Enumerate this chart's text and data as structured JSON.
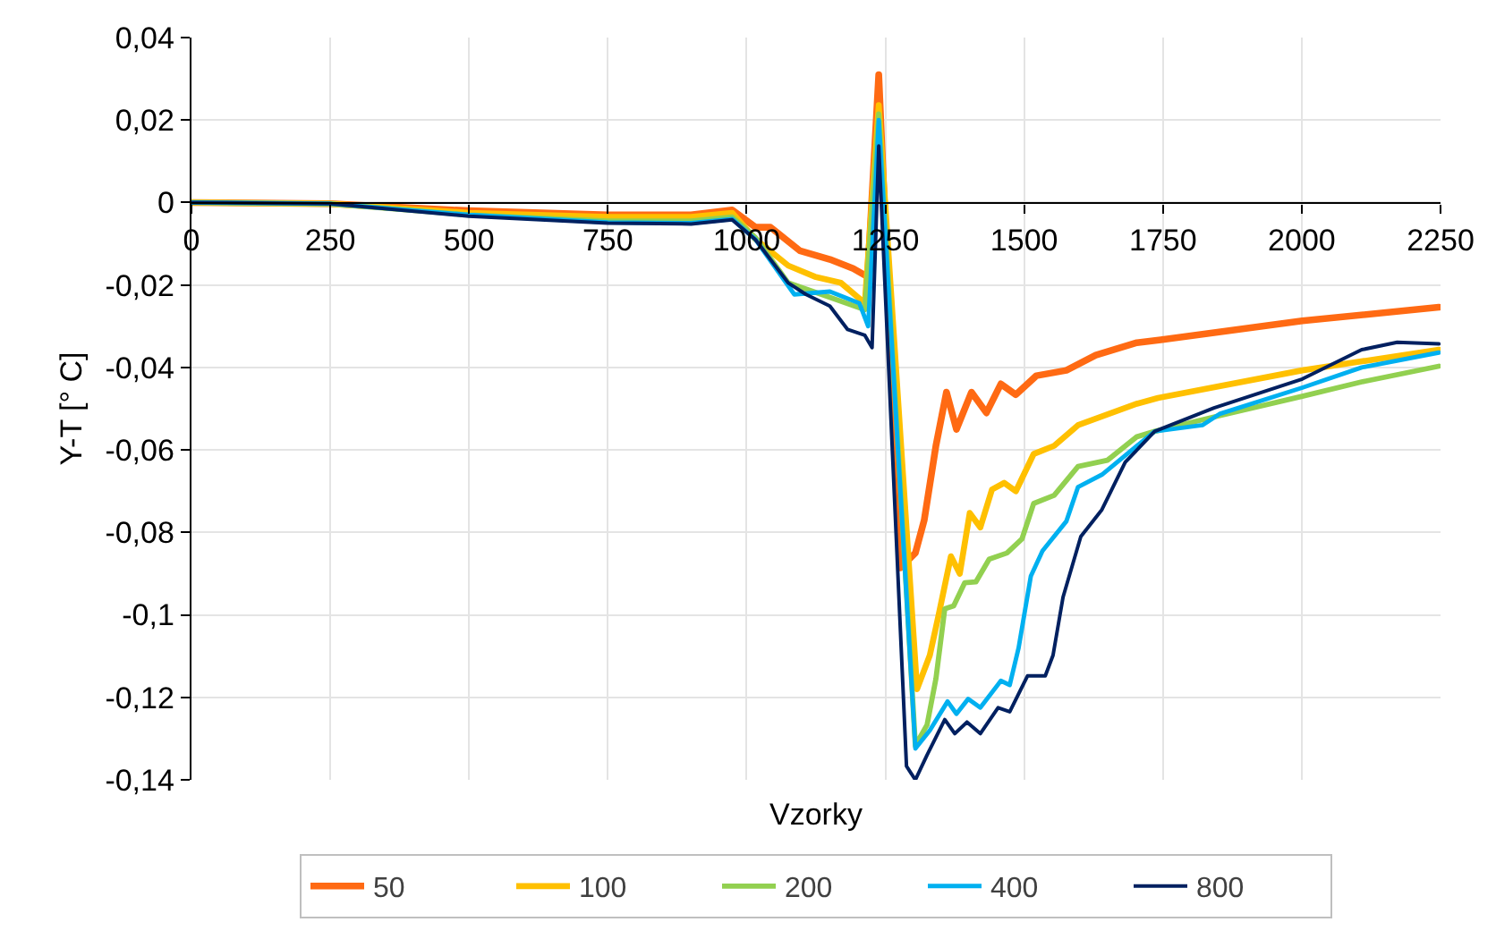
{
  "chart_data": {
    "type": "line",
    "xlabel": "Vzorky",
    "ylabel": "Y-T [° C]",
    "xlim": [
      0,
      2250
    ],
    "xticks": [
      0,
      250,
      500,
      750,
      1000,
      1250,
      1500,
      1750,
      2000,
      2250
    ],
    "ylim": [
      -0.14,
      0.04
    ],
    "yticks": [
      {
        "value": -0.14,
        "label": "-0,14"
      },
      {
        "value": -0.12,
        "label": "-0,12"
      },
      {
        "value": -0.1,
        "label": "-0,1"
      },
      {
        "value": -0.08,
        "label": "-0,08"
      },
      {
        "value": -0.06,
        "label": "-0,06"
      },
      {
        "value": -0.04,
        "label": "-0,04"
      },
      {
        "value": -0.02,
        "label": "-0,02"
      },
      {
        "value": 0,
        "label": "0"
      },
      {
        "value": 0.02,
        "label": "0,02"
      },
      {
        "value": 0.04,
        "label": "0,04"
      }
    ],
    "grid": true,
    "legend": "bottom",
    "marker": "none",
    "line_style": "solid",
    "series": [
      {
        "name": "50",
        "color": "#ff6a13",
        "x": [
          0,
          250,
          500,
          750,
          900,
          974,
          1016,
          1043,
          1096,
          1150,
          1192,
          1218,
          1238,
          1277,
          1304,
          1320,
          1341,
          1360,
          1378,
          1405,
          1432,
          1458,
          1485,
          1522,
          1576,
          1629,
          1703,
          1746,
          2001,
          2247
        ],
        "values": [
          0,
          -0.0003,
          -0.002,
          -0.003,
          -0.003,
          -0.0018,
          -0.006,
          -0.006,
          -0.0117,
          -0.0138,
          -0.016,
          -0.018,
          0.031,
          -0.0886,
          -0.085,
          -0.077,
          -0.059,
          -0.046,
          -0.055,
          -0.046,
          -0.051,
          -0.044,
          -0.0466,
          -0.042,
          -0.0407,
          -0.037,
          -0.034,
          -0.0333,
          -0.0287,
          -0.0254
        ]
      },
      {
        "name": "100",
        "color": "#ffc000",
        "x": [
          0,
          250,
          500,
          750,
          900,
          974,
          1016,
          1075,
          1123,
          1170,
          1213,
          1238,
          1307,
          1330,
          1346,
          1368,
          1384,
          1402,
          1421,
          1442,
          1464,
          1485,
          1517,
          1554,
          1597,
          1703,
          1741,
          2001,
          2247
        ],
        "values": [
          0,
          -0.0003,
          -0.0025,
          -0.0035,
          -0.0035,
          -0.0025,
          -0.0089,
          -0.0153,
          -0.018,
          -0.0195,
          -0.0244,
          0.0236,
          -0.118,
          -0.1098,
          -0.1,
          -0.0858,
          -0.09,
          -0.0753,
          -0.0788,
          -0.0696,
          -0.068,
          -0.07,
          -0.061,
          -0.059,
          -0.054,
          -0.0488,
          -0.0474,
          -0.0407,
          -0.0357
        ]
      },
      {
        "name": "200",
        "color": "#92d050",
        "x": [
          0,
          250,
          500,
          750,
          900,
          974,
          1016,
          1075,
          1150,
          1213,
          1238,
          1304,
          1325,
          1341,
          1357,
          1373,
          1393,
          1413,
          1437,
          1469,
          1496,
          1517,
          1554,
          1597,
          1650,
          1703,
          1735,
          1842,
          2001,
          2108,
          2247
        ],
        "values": [
          0,
          -0.0003,
          -0.003,
          -0.0045,
          -0.0045,
          -0.0035,
          -0.0085,
          -0.0195,
          -0.023,
          -0.026,
          0.0215,
          -0.1317,
          -0.1267,
          -0.1155,
          -0.0985,
          -0.0978,
          -0.0922,
          -0.092,
          -0.0865,
          -0.085,
          -0.0816,
          -0.073,
          -0.071,
          -0.064,
          -0.0625,
          -0.0568,
          -0.0555,
          -0.052,
          -0.047,
          -0.0435,
          -0.0397
        ]
      },
      {
        "name": "400",
        "color": "#00b0f0",
        "x": [
          0,
          250,
          500,
          750,
          900,
          974,
          1016,
          1086,
          1150,
          1203,
          1219,
          1238,
          1304,
          1330,
          1362,
          1378,
          1399,
          1421,
          1458,
          1474,
          1490,
          1512,
          1533,
          1576,
          1597,
          1640,
          1735,
          1821,
          1853,
          2001,
          2108,
          2247
        ],
        "values": [
          0,
          -0.0003,
          -0.003,
          -0.0048,
          -0.005,
          -0.004,
          -0.009,
          -0.0223,
          -0.0216,
          -0.0244,
          -0.03,
          0.02,
          -0.1324,
          -0.128,
          -0.121,
          -0.124,
          -0.1204,
          -0.1225,
          -0.116,
          -0.117,
          -0.108,
          -0.0906,
          -0.0845,
          -0.0773,
          -0.069,
          -0.066,
          -0.0555,
          -0.054,
          -0.0512,
          -0.0449,
          -0.04,
          -0.0364
        ]
      },
      {
        "name": "800",
        "color": "#002060",
        "x": [
          0,
          250,
          500,
          750,
          900,
          974,
          1016,
          1075,
          1107,
          1150,
          1182,
          1213,
          1226,
          1238,
          1288,
          1304,
          1325,
          1357,
          1375,
          1397,
          1421,
          1453,
          1474,
          1506,
          1538,
          1552,
          1570,
          1602,
          1640,
          1682,
          1735,
          1842,
          2001,
          2108,
          2172,
          2247
        ],
        "values": [
          0,
          -0.0003,
          -0.0033,
          -0.005,
          -0.0052,
          -0.0042,
          -0.009,
          -0.0195,
          -0.0223,
          -0.0251,
          -0.0308,
          -0.0322,
          -0.0352,
          0.0137,
          -0.1367,
          -0.14,
          -0.134,
          -0.1254,
          -0.1288,
          -0.126,
          -0.1288,
          -0.1225,
          -0.1235,
          -0.1148,
          -0.1148,
          -0.1098,
          -0.0957,
          -0.081,
          -0.0745,
          -0.063,
          -0.0555,
          -0.0498,
          -0.0428,
          -0.0357,
          -0.0339,
          -0.0343
        ]
      }
    ]
  }
}
